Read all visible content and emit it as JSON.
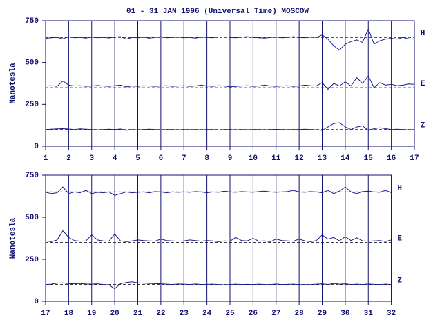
{
  "chart_data": [
    {
      "type": "line",
      "title": "01 - 31 JAN 1996 (Universal Time) MOSCOW",
      "ylabel": "Nanotesla",
      "x": [
        1,
        1.25,
        1.5,
        1.75,
        2,
        2.25,
        2.5,
        2.75,
        3,
        3.25,
        3.5,
        3.75,
        4,
        4.25,
        4.5,
        4.75,
        5,
        5.25,
        5.5,
        5.75,
        6,
        6.25,
        6.5,
        6.75,
        7,
        7.25,
        7.5,
        7.75,
        8,
        8.25,
        8.5,
        8.75,
        9,
        9.25,
        9.5,
        9.75,
        10,
        10.25,
        10.5,
        10.75,
        11,
        11.25,
        11.5,
        11.75,
        12,
        12.25,
        12.5,
        12.75,
        13,
        13.25,
        13.5,
        13.75,
        14,
        14.25,
        14.5,
        14.75,
        15,
        15.25,
        15.5,
        15.75,
        16,
        16.25,
        16.5,
        16.75,
        17
      ],
      "series": [
        {
          "name": "H",
          "color": "#1a1a8c",
          "values": [
            645,
            648,
            650,
            642,
            655,
            648,
            650,
            646,
            652,
            648,
            650,
            647,
            652,
            655,
            640,
            650,
            648,
            652,
            646,
            650,
            655,
            648,
            650,
            652,
            648,
            650,
            646,
            652,
            650,
            648,
            655,
            null,
            650,
            648,
            652,
            655,
            650,
            648,
            646,
            650,
            652,
            648,
            650,
            655,
            650,
            648,
            652,
            650,
            665,
            640,
            600,
            575,
            610,
            625,
            635,
            620,
            700,
            610,
            630,
            640,
            645,
            640,
            650,
            642,
            640
          ]
        },
        {
          "name": "E",
          "color": "#1a1a8c",
          "values": [
            360,
            362,
            358,
            390,
            365,
            360,
            362,
            358,
            360,
            363,
            360,
            358,
            362,
            365,
            355,
            360,
            358,
            362,
            360,
            358,
            360,
            362,
            358,
            360,
            362,
            358,
            360,
            365,
            360,
            358,
            362,
            360,
            355,
            358,
            360,
            362,
            358,
            360,
            365,
            360,
            358,
            360,
            362,
            358,
            360,
            365,
            362,
            360,
            380,
            340,
            375,
            360,
            385,
            360,
            410,
            375,
            420,
            350,
            380,
            365,
            370,
            362,
            365,
            372,
            370
          ]
        },
        {
          "name": "Z",
          "color": "#1a1a8c",
          "values": [
            100,
            102,
            104,
            105,
            103,
            100,
            104,
            102,
            100,
            98,
            100,
            102,
            100,
            103,
            95,
            100,
            98,
            100,
            102,
            100,
            98,
            100,
            100,
            98,
            100,
            99,
            100,
            98,
            100,
            100,
            97,
            100,
            100,
            98,
            100,
            99,
            100,
            100,
            98,
            100,
            101,
            100,
            99,
            100,
            100,
            102,
            100,
            98,
            95,
            115,
            135,
            140,
            115,
            100,
            115,
            122,
            95,
            105,
            110,
            105,
            100,
            102,
            100,
            98,
            100
          ]
        }
      ],
      "reference_lines": [
        650,
        350,
        100
      ],
      "xlim": [
        1,
        17
      ],
      "xticks": [
        1,
        2,
        3,
        4,
        5,
        6,
        7,
        8,
        9,
        10,
        11,
        12,
        13,
        14,
        15,
        16,
        17
      ],
      "ylim": [
        0,
        750
      ],
      "yticks": [
        0,
        250,
        500,
        750
      ],
      "grid": true
    },
    {
      "type": "line",
      "ylabel": "Nanotesla",
      "x": [
        17,
        17.25,
        17.5,
        17.75,
        18,
        18.25,
        18.5,
        18.75,
        19,
        19.25,
        19.5,
        19.75,
        20,
        20.25,
        20.5,
        20.75,
        21,
        21.25,
        21.5,
        21.75,
        22,
        22.25,
        22.5,
        22.75,
        23,
        23.25,
        23.5,
        23.75,
        24,
        24.25,
        24.5,
        24.75,
        25,
        25.25,
        25.5,
        25.75,
        26,
        26.25,
        26.5,
        26.75,
        27,
        27.25,
        27.5,
        27.75,
        28,
        28.25,
        28.5,
        28.75,
        29,
        29.25,
        29.5,
        29.75,
        30,
        30.25,
        30.5,
        30.75,
        31,
        31.25,
        31.5,
        31.75,
        32
      ],
      "series": [
        {
          "name": "H",
          "color": "#1a1a8c",
          "values": [
            648,
            640,
            645,
            680,
            640,
            650,
            645,
            660,
            640,
            648,
            645,
            650,
            630,
            640,
            650,
            645,
            648,
            650,
            645,
            652,
            650,
            645,
            650,
            648,
            650,
            648,
            652,
            650,
            645,
            650,
            648,
            655,
            650,
            648,
            652,
            650,
            648,
            652,
            655,
            650,
            648,
            650,
            652,
            660,
            650,
            648,
            652,
            650,
            645,
            660,
            640,
            655,
            680,
            650,
            640,
            652,
            655,
            650,
            648,
            660,
            645
          ]
        },
        {
          "name": "E",
          "color": "#1a1a8c",
          "values": [
            360,
            355,
            365,
            420,
            380,
            362,
            358,
            360,
            395,
            365,
            360,
            358,
            400,
            360,
            355,
            360,
            365,
            362,
            360,
            358,
            370,
            362,
            360,
            358,
            360,
            365,
            362,
            358,
            362,
            360,
            355,
            360,
            358,
            380,
            362,
            360,
            375,
            358,
            360,
            355,
            370,
            362,
            360,
            358,
            370,
            360,
            355,
            362,
            395,
            370,
            380,
            360,
            385,
            362,
            378,
            360,
            358,
            360,
            362,
            356,
            365
          ]
        },
        {
          "name": "Z",
          "color": "#1a1a8c",
          "values": [
            100,
            102,
            108,
            110,
            105,
            104,
            106,
            103,
            102,
            104,
            100,
            98,
            75,
            105,
            112,
            116,
            110,
            108,
            106,
            105,
            104,
            102,
            100,
            103,
            102,
            100,
            103,
            100,
            101,
            102,
            100,
            98,
            100,
            102,
            100,
            101,
            100,
            102,
            100,
            99,
            103,
            100,
            101,
            102,
            100,
            99,
            100,
            102,
            104,
            100,
            106,
            102,
            104,
            100,
            102,
            100,
            103,
            101,
            100,
            102,
            100
          ]
        }
      ],
      "reference_lines": [
        650,
        350,
        100
      ],
      "xlim": [
        17,
        32
      ],
      "xticks": [
        17,
        18,
        19,
        20,
        21,
        22,
        23,
        24,
        25,
        26,
        27,
        28,
        29,
        30,
        31,
        32
      ],
      "ylim": [
        0,
        750
      ],
      "yticks": [
        0,
        250,
        500,
        750
      ],
      "grid": true
    }
  ]
}
